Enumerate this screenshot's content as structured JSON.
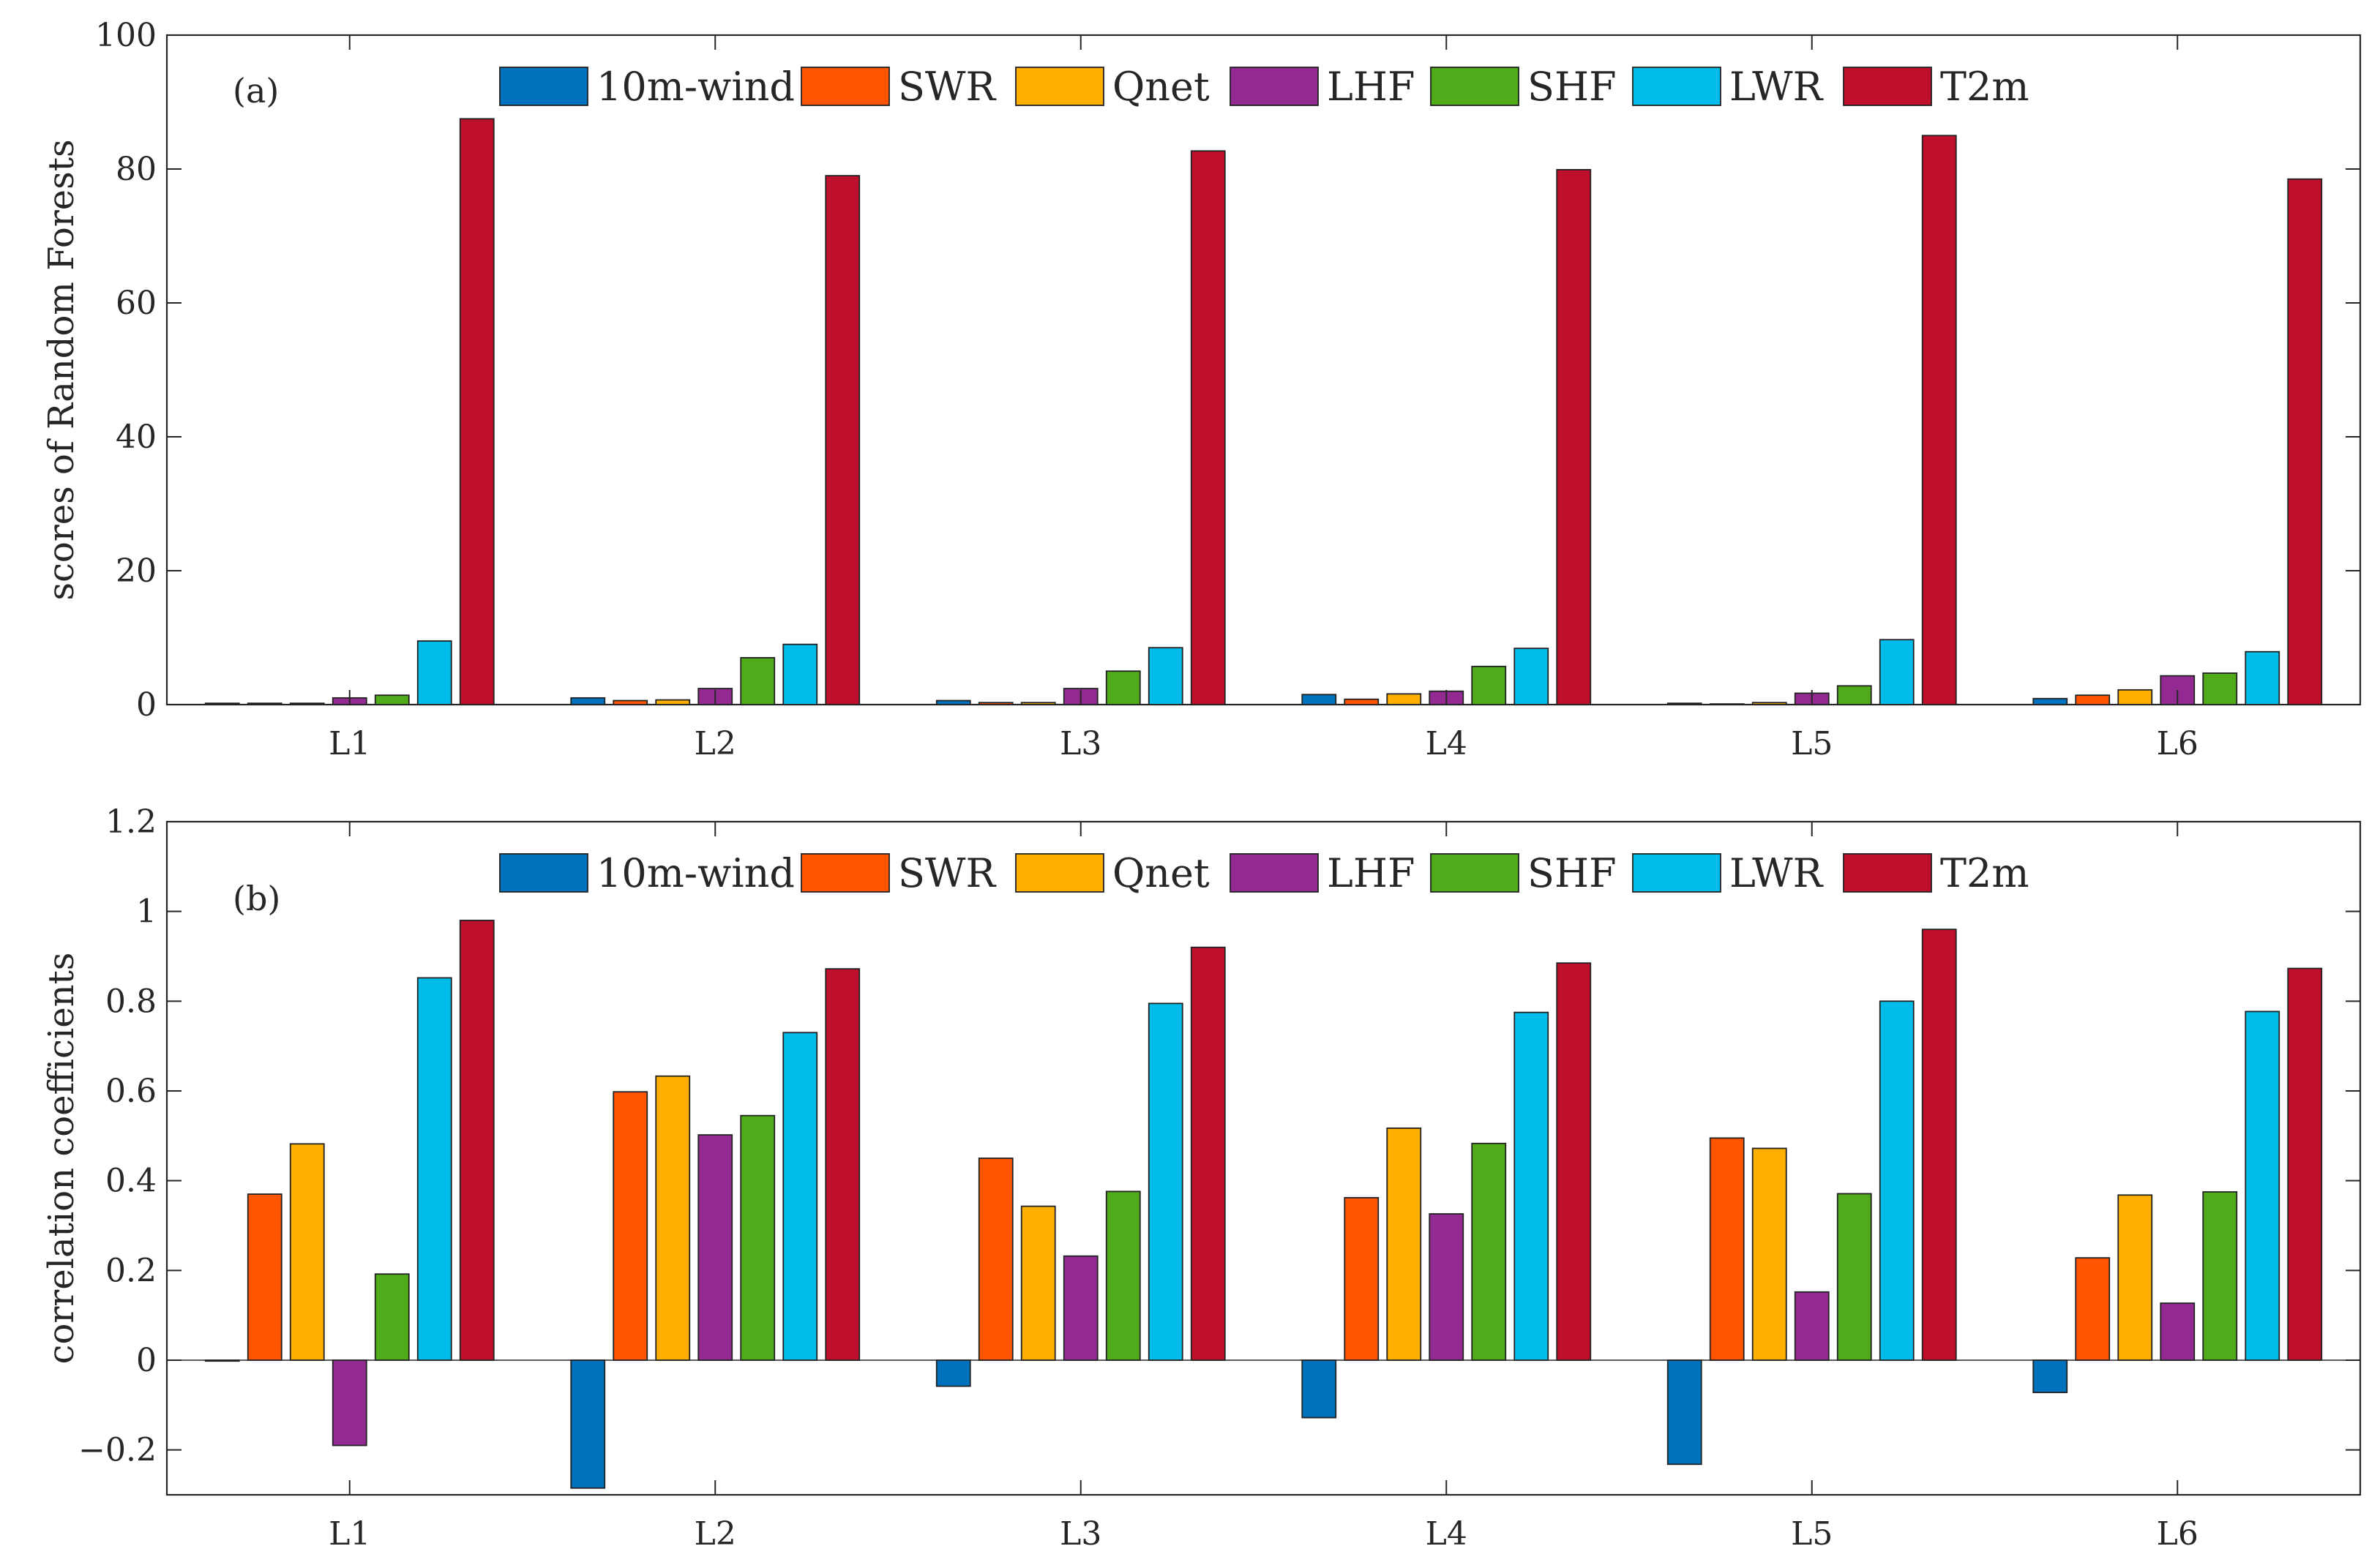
{
  "colors": {
    "10m-wind": "#0072BD",
    "SWR": "#FF5400",
    "Qnet": "#FFAF00",
    "LHF": "#922A91",
    "SHF": "#4FAB1A",
    "LWR": "#00BCEB",
    "T2m": "#BE0F2C"
  },
  "chart_data": [
    {
      "type": "bar",
      "panel_label": "(a)",
      "title": "",
      "xlabel": "",
      "ylabel": "scores of Random Forests",
      "ylim": [
        0,
        100
      ],
      "yticks": [
        0,
        20,
        40,
        60,
        80,
        100
      ],
      "ytick_labels": [
        "0",
        "20",
        "40",
        "60",
        "80",
        "100"
      ],
      "categories": [
        "L1",
        "L2",
        "L3",
        "L4",
        "L5",
        "L6"
      ],
      "legend_position": "top-center",
      "series": [
        {
          "name": "10m-wind",
          "values": [
            0.2,
            1.0,
            0.6,
            1.5,
            0.2,
            0.9
          ]
        },
        {
          "name": "SWR",
          "values": [
            0.2,
            0.6,
            0.3,
            0.8,
            0.1,
            1.4
          ]
        },
        {
          "name": "Qnet",
          "values": [
            0.2,
            0.7,
            0.3,
            1.6,
            0.3,
            2.2
          ]
        },
        {
          "name": "LHF",
          "values": [
            1.0,
            2.4,
            2.4,
            2.0,
            1.7,
            4.3
          ]
        },
        {
          "name": "SHF",
          "values": [
            1.4,
            7.0,
            5.0,
            5.7,
            2.8,
            4.7
          ]
        },
        {
          "name": "LWR",
          "values": [
            9.5,
            9.0,
            8.5,
            8.4,
            9.7,
            7.9
          ]
        },
        {
          "name": "T2m",
          "values": [
            87.5,
            79.0,
            82.7,
            79.9,
            85.0,
            78.5
          ]
        }
      ]
    },
    {
      "type": "bar",
      "panel_label": "(b)",
      "title": "",
      "xlabel": "",
      "ylabel": "correlation coefficients",
      "ylim": [
        -0.3,
        1.2
      ],
      "yticks": [
        -0.2,
        0,
        0.2,
        0.4,
        0.6,
        0.8,
        1,
        1.2
      ],
      "ytick_labels": [
        "−0.2",
        "0",
        "0.2",
        "0.4",
        "0.6",
        "0.8",
        "1",
        "1.2"
      ],
      "categories": [
        "L1",
        "L2",
        "L3",
        "L4",
        "L5",
        "L6"
      ],
      "legend_position": "top-center",
      "series": [
        {
          "name": "10m-wind",
          "values": [
            -0.002,
            -0.285,
            -0.058,
            -0.128,
            -0.232,
            -0.072
          ]
        },
        {
          "name": "SWR",
          "values": [
            0.37,
            0.598,
            0.45,
            0.362,
            0.495,
            0.228
          ]
        },
        {
          "name": "Qnet",
          "values": [
            0.482,
            0.633,
            0.343,
            0.517,
            0.472,
            0.368
          ]
        },
        {
          "name": "LHF",
          "values": [
            -0.19,
            0.502,
            0.232,
            0.326,
            0.152,
            0.127
          ]
        },
        {
          "name": "SHF",
          "values": [
            0.192,
            0.545,
            0.376,
            0.483,
            0.371,
            0.375
          ]
        },
        {
          "name": "LWR",
          "values": [
            0.852,
            0.73,
            0.795,
            0.775,
            0.8,
            0.777
          ]
        },
        {
          "name": "T2m",
          "values": [
            0.98,
            0.872,
            0.92,
            0.885,
            0.96,
            0.873
          ]
        }
      ]
    }
  ]
}
